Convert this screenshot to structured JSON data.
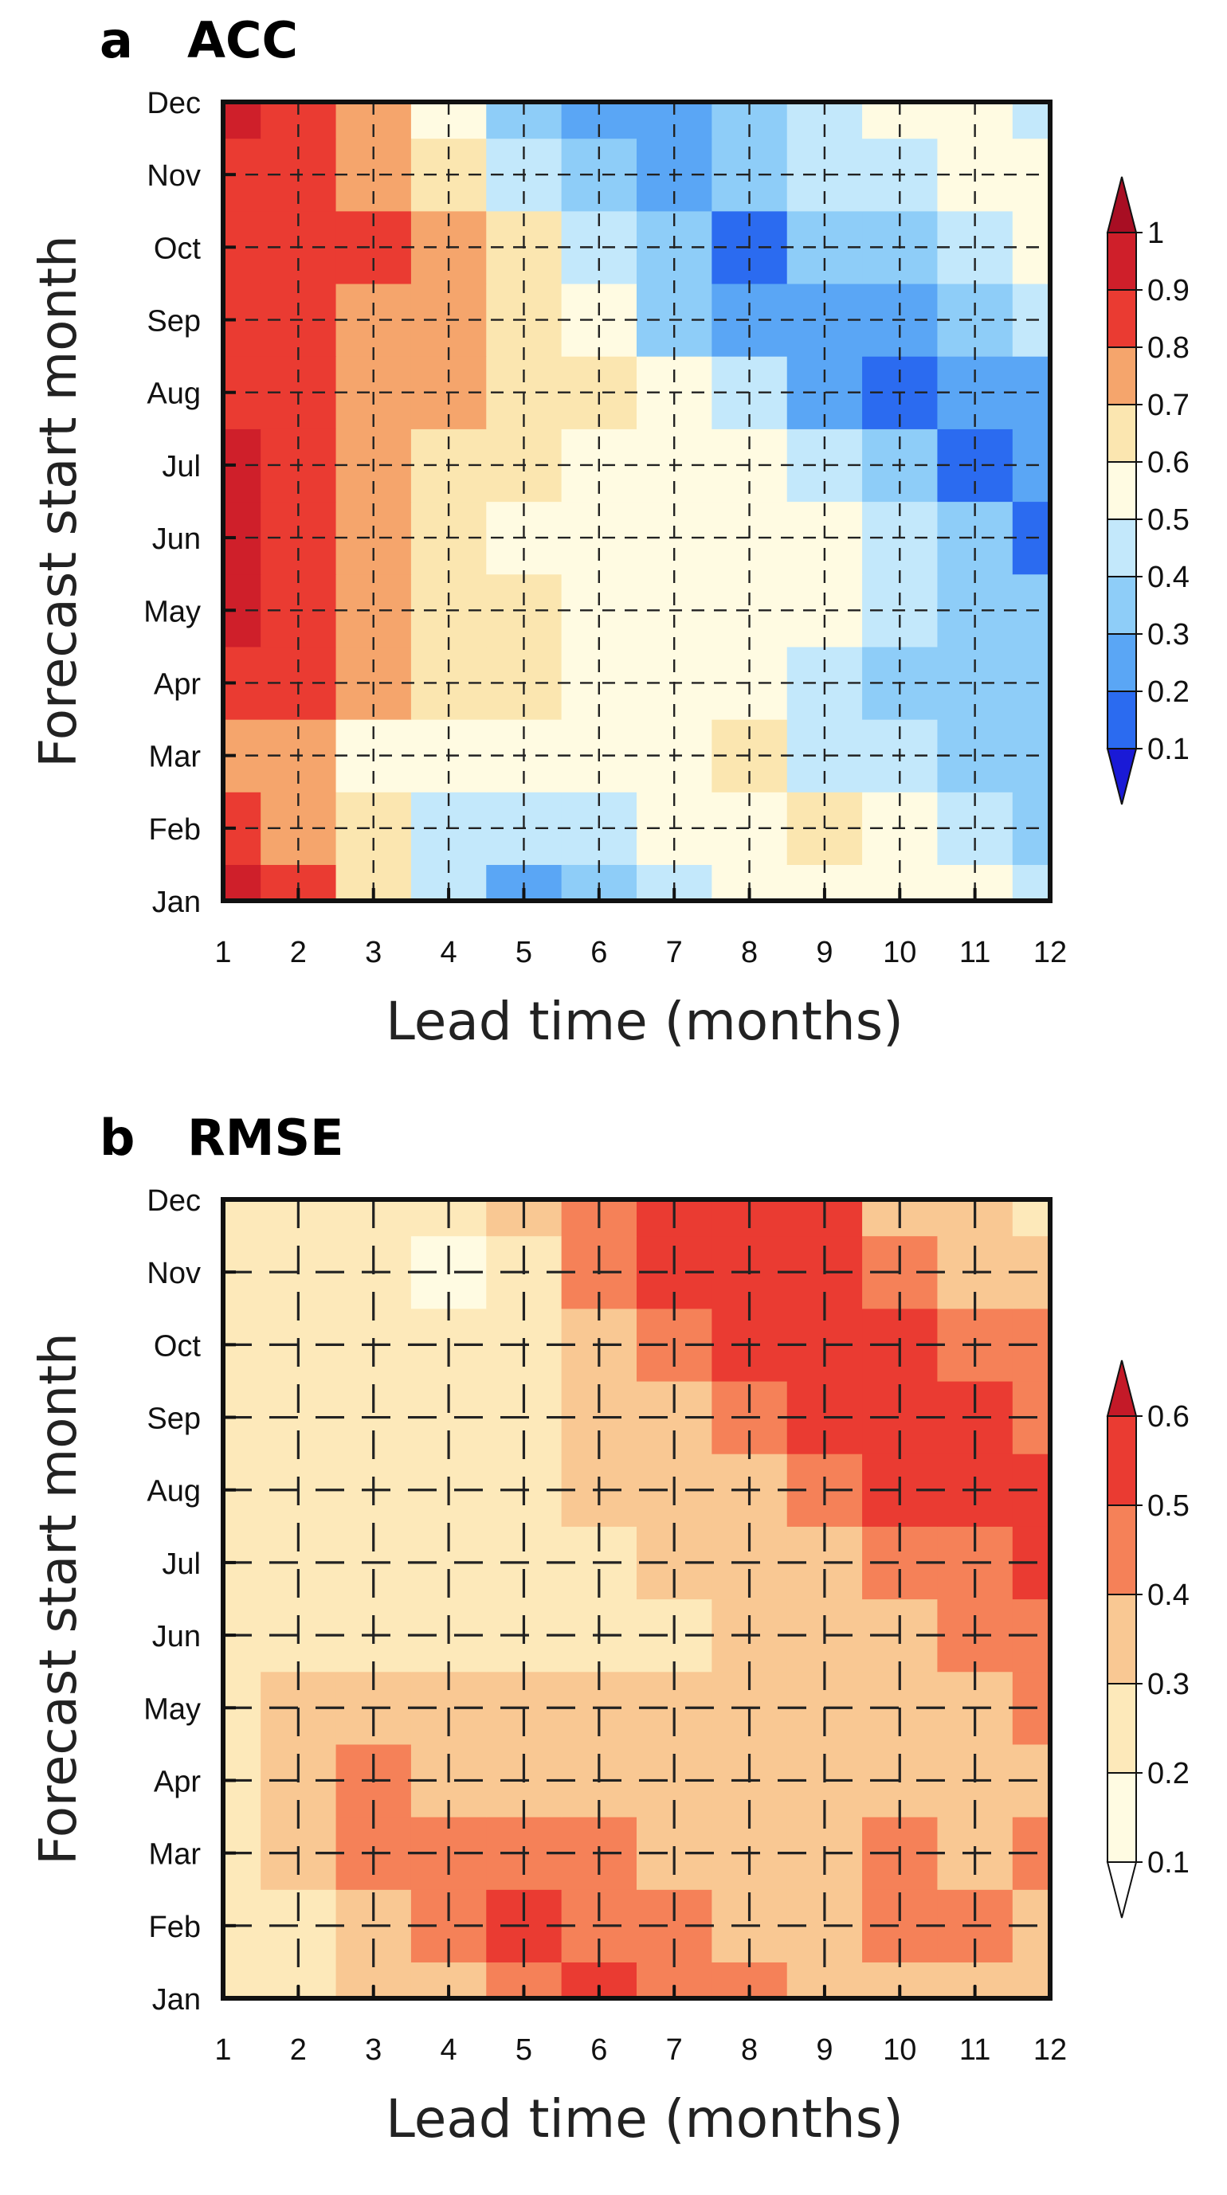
{
  "chart_data": [
    {
      "type": "heatmap",
      "panel_letter": "a",
      "title": "ACC",
      "xlabel": "Lead time (months)",
      "ylabel": "Forecast start month",
      "x_ticks": [
        "1",
        "2",
        "3",
        "4",
        "5",
        "6",
        "7",
        "8",
        "9",
        "10",
        "11",
        "12"
      ],
      "y_ticks": [
        "Jan",
        "Feb",
        "Mar",
        "Apr",
        "May",
        "Jun",
        "Jul",
        "Aug",
        "Sep",
        "Oct",
        "Nov",
        "Dec"
      ],
      "xlim": [
        1,
        12
      ],
      "grid": "dashed",
      "colorbar": {
        "levels": [
          "0.1",
          "0.2",
          "0.3",
          "0.4",
          "0.5",
          "0.6",
          "0.7",
          "0.8",
          "0.9",
          "1"
        ],
        "colors": [
          "#1a1ad6",
          "#2b6bf0",
          "#5aa6f5",
          "#8ecdf8",
          "#c3e8fb",
          "#fffbe2",
          "#fbe6b0",
          "#f5a56c",
          "#ea3b32",
          "#cf1f2a",
          "#a80e23"
        ],
        "extend": "both"
      },
      "values": [
        [
          0.93,
          0.84,
          0.67,
          0.42,
          0.28,
          0.38,
          0.45,
          0.58,
          0.58,
          0.58,
          0.52,
          0.49
        ],
        [
          0.86,
          0.76,
          0.62,
          0.49,
          0.48,
          0.44,
          0.5,
          0.55,
          0.6,
          0.55,
          0.45,
          0.36
        ],
        [
          0.78,
          0.7,
          0.55,
          0.55,
          0.58,
          0.57,
          0.58,
          0.6,
          0.44,
          0.4,
          0.3,
          0.36
        ],
        [
          0.83,
          0.8,
          0.72,
          0.64,
          0.62,
          0.57,
          0.59,
          0.57,
          0.45,
          0.34,
          0.36,
          0.31
        ],
        [
          0.92,
          0.84,
          0.73,
          0.64,
          0.6,
          0.56,
          0.55,
          0.52,
          0.52,
          0.43,
          0.35,
          0.3
        ],
        [
          0.92,
          0.87,
          0.73,
          0.64,
          0.56,
          0.55,
          0.54,
          0.52,
          0.57,
          0.45,
          0.31,
          0.15
        ],
        [
          0.91,
          0.85,
          0.74,
          0.67,
          0.6,
          0.56,
          0.54,
          0.51,
          0.43,
          0.32,
          0.13,
          0.2
        ],
        [
          0.87,
          0.82,
          0.75,
          0.7,
          0.65,
          0.62,
          0.58,
          0.41,
          0.27,
          0.15,
          0.21,
          0.28
        ],
        [
          0.87,
          0.82,
          0.77,
          0.72,
          0.67,
          0.53,
          0.36,
          0.29,
          0.23,
          0.25,
          0.32,
          0.42
        ],
        [
          0.88,
          0.85,
          0.84,
          0.79,
          0.6,
          0.4,
          0.3,
          0.18,
          0.3,
          0.39,
          0.44,
          0.53
        ],
        [
          0.88,
          0.84,
          0.77,
          0.66,
          0.49,
          0.33,
          0.28,
          0.3,
          0.4,
          0.46,
          0.56,
          0.58
        ],
        [
          0.91,
          0.86,
          0.75,
          0.53,
          0.32,
          0.27,
          0.24,
          0.3,
          0.4,
          0.52,
          0.53,
          0.4
        ]
      ]
    },
    {
      "type": "heatmap",
      "panel_letter": "b",
      "title": "RMSE",
      "xlabel": "Lead time (months)",
      "ylabel": "Forecast start month",
      "x_ticks": [
        "1",
        "2",
        "3",
        "4",
        "5",
        "6",
        "7",
        "8",
        "9",
        "10",
        "11",
        "12"
      ],
      "y_ticks": [
        "Jan",
        "Feb",
        "Mar",
        "Apr",
        "May",
        "Jun",
        "Jul",
        "Aug",
        "Sep",
        "Oct",
        "Nov",
        "Dec"
      ],
      "xlim": [
        1,
        12
      ],
      "grid": "dashed",
      "colorbar": {
        "levels": [
          "0.1",
          "0.2",
          "0.3",
          "0.4",
          "0.5",
          "0.6"
        ],
        "colors": [
          "#ffffff",
          "#fffbe2",
          "#fde9ba",
          "#f9c893",
          "#f58158",
          "#ea3b32",
          "#c41a28"
        ],
        "extend": "both"
      },
      "values": [
        [
          0.24,
          0.27,
          0.31,
          0.38,
          0.45,
          0.5,
          0.44,
          0.4,
          0.34,
          0.34,
          0.32,
          0.32
        ],
        [
          0.24,
          0.28,
          0.38,
          0.45,
          0.5,
          0.48,
          0.44,
          0.38,
          0.34,
          0.4,
          0.4,
          0.36
        ],
        [
          0.23,
          0.3,
          0.4,
          0.44,
          0.45,
          0.43,
          0.37,
          0.33,
          0.37,
          0.41,
          0.37,
          0.42
        ],
        [
          0.23,
          0.35,
          0.4,
          0.38,
          0.36,
          0.34,
          0.32,
          0.31,
          0.33,
          0.38,
          0.36,
          0.39
        ],
        [
          0.23,
          0.3,
          0.38,
          0.37,
          0.33,
          0.31,
          0.31,
          0.31,
          0.31,
          0.33,
          0.35,
          0.42
        ],
        [
          0.21,
          0.28,
          0.29,
          0.29,
          0.29,
          0.29,
          0.29,
          0.3,
          0.32,
          0.36,
          0.42,
          0.47
        ],
        [
          0.22,
          0.21,
          0.21,
          0.25,
          0.28,
          0.29,
          0.3,
          0.33,
          0.37,
          0.44,
          0.48,
          0.52
        ],
        [
          0.24,
          0.23,
          0.23,
          0.24,
          0.27,
          0.3,
          0.33,
          0.39,
          0.46,
          0.51,
          0.53,
          0.55
        ],
        [
          0.25,
          0.24,
          0.22,
          0.21,
          0.22,
          0.32,
          0.37,
          0.45,
          0.52,
          0.54,
          0.53,
          0.48
        ],
        [
          0.25,
          0.2,
          0.22,
          0.2,
          0.2,
          0.34,
          0.44,
          0.5,
          0.55,
          0.53,
          0.46,
          0.4
        ],
        [
          0.25,
          0.23,
          0.2,
          0.18,
          0.24,
          0.4,
          0.5,
          0.55,
          0.53,
          0.46,
          0.38,
          0.34
        ],
        [
          0.25,
          0.24,
          0.24,
          0.26,
          0.3,
          0.44,
          0.52,
          0.58,
          0.51,
          0.38,
          0.33,
          0.28
        ]
      ]
    }
  ]
}
